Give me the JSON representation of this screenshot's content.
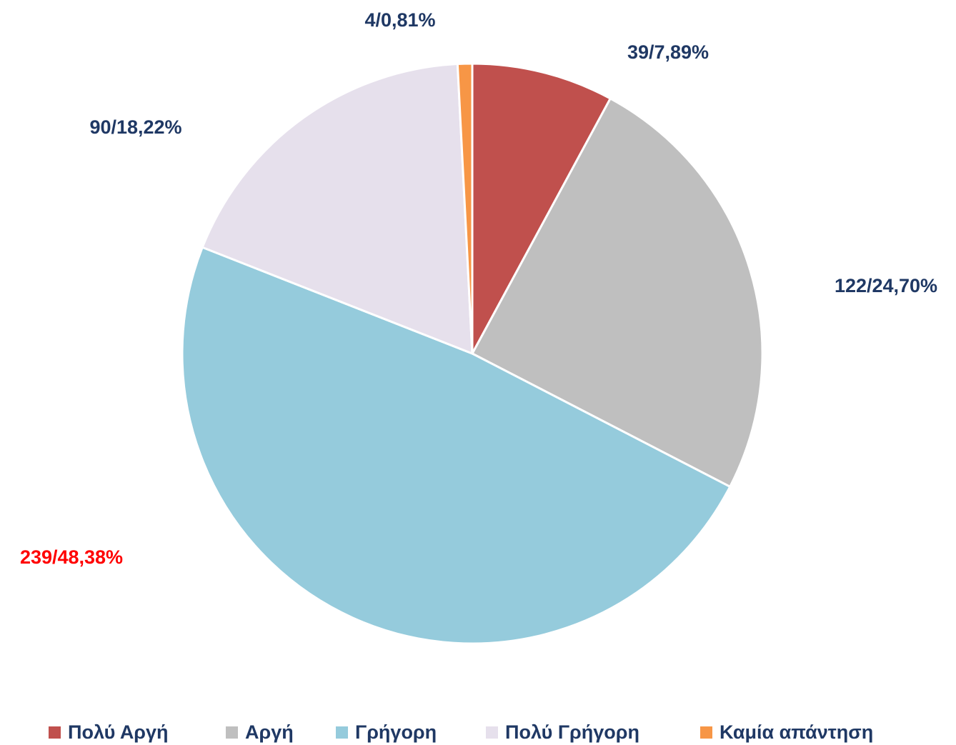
{
  "chart_data": {
    "type": "pie",
    "categories": [
      "Πολύ Αργή",
      "Αργή",
      "Γρήγορη",
      "Πολύ Γρήγορη",
      "Καμία απάντηση"
    ],
    "values": [
      39,
      122,
      239,
      90,
      4
    ],
    "value_labels": [
      "39/7,89%",
      "122/24,70%",
      "239/48,38%",
      "90/18,22%",
      "4/0,81%"
    ],
    "colors": [
      "#c0504d",
      "#bfbfbf",
      "#95cbdc",
      "#e6e0ec",
      "#f79646"
    ],
    "label_colors": [
      "#1f3864",
      "#1f3864",
      "#ff0000",
      "#1f3864",
      "#1f3864"
    ],
    "legend": "bottom"
  }
}
